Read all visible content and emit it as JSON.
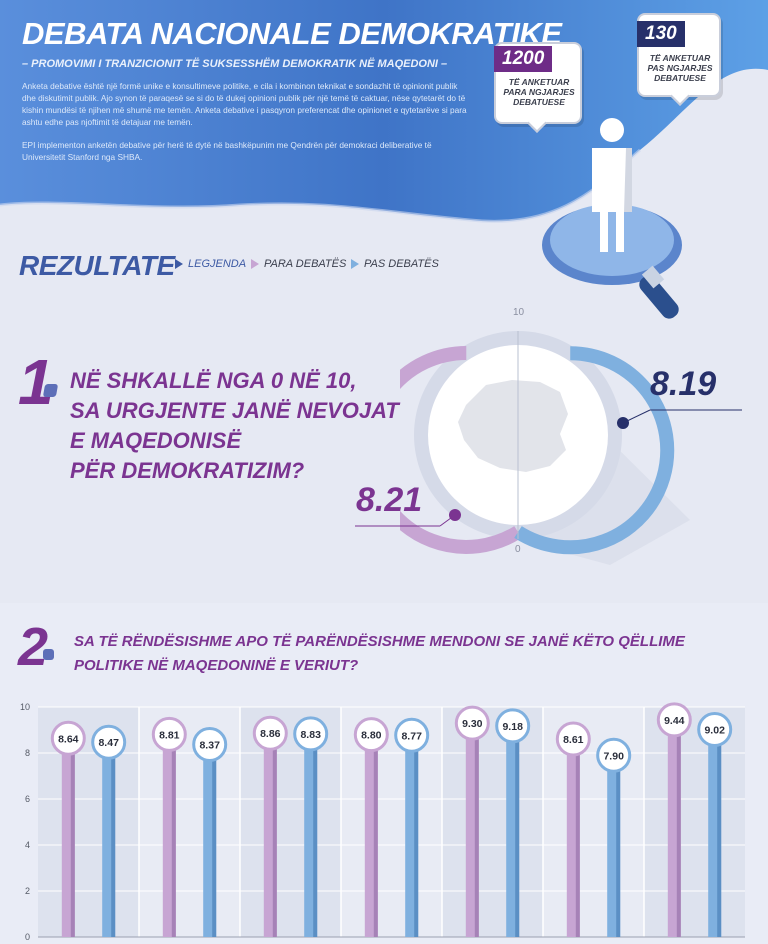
{
  "header": {
    "title": "DEBATA NACIONALE DEMOKRATIKE",
    "subtitle": "– PROMOVIMI I TRANZICIONIT TË SUKSESSHËM DEMOKRATIK NË MAQEDONI –",
    "intro_p1": "Anketa debative është një formë unike e konsultimeve politike, e cila i kombinon teknikat e sondazhit të opinionit publik dhe diskutimit publik. Ajo synon të paraqesë se si do të dukej opinioni publik për një temë të caktuar, nëse qytetarët do të kishin mundësi të njihen më shumë me temën. Anketa debative i pasqyron preferencat dhe opinionet e qytetarëve si para ashtu edhe pas njoftimit të detajuar me temën.",
    "intro_p2": "EPI implementon anketën debative për herë të dytë në bashkëpunim me Qendrën për demokraci deliberative të Universitetit Stanford nga SHBA.",
    "bubble_pre": {
      "count": "1200",
      "text": "TË ANKETUAR PARA NGJARJES DEBATUESE"
    },
    "bubble_post": {
      "count": "130",
      "text": "TË ANKETUAR PAS NGJARJES DEBATUESE"
    }
  },
  "results": {
    "title": "REZULTATE",
    "legend_label": "LEGJENDA",
    "legend_pre": "PARA DEBATËS",
    "legend_post": "PAS DEBATËS"
  },
  "colors": {
    "pre": "#c7a5d3",
    "post": "#7fb0df",
    "accent_purple": "#7b3491",
    "accent_navy": "#27306a",
    "header_blue": "#3f74c7"
  },
  "q1": {
    "number": "1",
    "line1": "NË SHKALLË NGA 0 NË 10,",
    "line2": "SA URGJENTE JANË NEVOJAT",
    "line3": "E MAQEDONISË",
    "line4": "PËR DEMOKRATIZIM?",
    "pre_value": "8.21",
    "post_value": "8.19",
    "scale_max": "10",
    "scale_min": "0"
  },
  "q2": {
    "number": "2",
    "line1": "SA TË RËNDËSISHME APO TË PARËNDËSISHME MENDONI SE JANË KËTO QËLLIME",
    "line2": "POLITIKE NË MAQEDONINË E VERIUT?"
  },
  "chart_data": [
    {
      "type": "gauge",
      "min": 0,
      "max": 10,
      "series": [
        {
          "name": "PARA DEBATËS",
          "value": 8.21
        },
        {
          "name": "PAS DEBATËS",
          "value": 8.19
        }
      ]
    },
    {
      "type": "bar",
      "categories": [
        "",
        "",
        "",
        "",
        "",
        "",
        ""
      ],
      "ylim": [
        0,
        10
      ],
      "yticks": [
        0,
        2,
        4,
        6,
        8,
        10
      ],
      "grid": true,
      "series": [
        {
          "name": "PARA DEBATËS",
          "values": [
            8.64,
            8.81,
            8.86,
            8.8,
            9.3,
            8.61,
            9.44
          ],
          "labels": [
            "8.64",
            "8.81",
            "8.86",
            "8.80",
            "9.30",
            "8.61",
            "9.44"
          ]
        },
        {
          "name": "PAS DEBATËS",
          "values": [
            8.47,
            8.37,
            8.83,
            8.77,
            9.18,
            7.9,
            9.02
          ],
          "labels": [
            "8.47",
            "8.37",
            "8.83",
            "8.77",
            "9.18",
            "7.90",
            "9.02"
          ]
        }
      ]
    }
  ]
}
